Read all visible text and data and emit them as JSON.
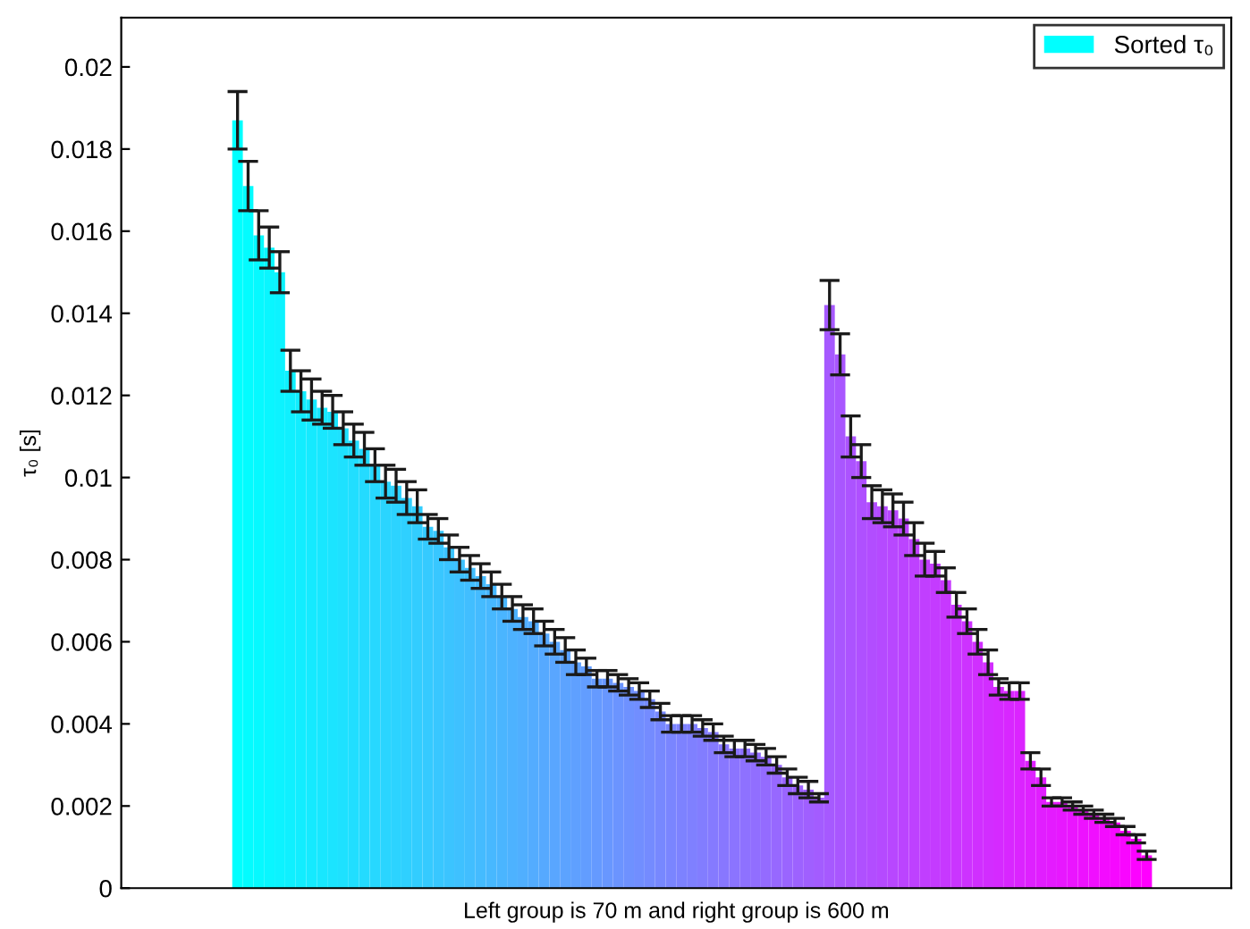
{
  "chart_data": {
    "type": "bar",
    "xlabel": "Left group is 70 m and right group is 600 m",
    "ylabel": "τ₀ [s]",
    "categories": [
      null,
      null,
      null,
      null,
      null,
      null,
      null,
      null,
      null,
      null,
      null,
      null,
      null,
      null,
      null,
      null,
      null,
      null,
      null,
      null,
      null,
      null,
      null,
      null,
      null,
      null,
      null,
      null,
      null,
      null,
      null,
      null,
      null,
      null,
      null,
      null,
      null,
      null,
      null,
      null,
      null,
      null,
      null,
      null,
      null,
      null,
      null,
      null,
      null,
      null,
      null,
      null,
      null,
      null,
      null,
      null,
      null,
      null,
      null,
      null,
      null,
      null,
      null,
      null,
      null,
      null,
      null,
      null,
      null,
      null,
      null,
      null,
      null,
      null,
      null,
      null,
      null,
      null,
      null,
      null,
      null,
      null,
      null,
      null,
      null,
      null,
      null
    ],
    "series": [
      {
        "name": "Sorted τ₀",
        "color": "#00ffff",
        "values": [
          0.0187,
          0.0171,
          0.0159,
          0.0156,
          0.015,
          0.0126,
          0.0121,
          0.0119,
          0.0117,
          0.0116,
          0.0112,
          0.0109,
          0.0107,
          0.0103,
          0.0099,
          0.0098,
          0.0095,
          0.0093,
          0.0088,
          0.0087,
          0.0083,
          0.008,
          0.0078,
          0.0076,
          0.0074,
          0.0071,
          0.0068,
          0.0066,
          0.0065,
          0.0062,
          0.006,
          0.0058,
          0.0055,
          0.0054,
          0.0051,
          0.0051,
          0.005,
          0.0049,
          0.0048,
          0.0046,
          0.0043,
          0.004,
          0.004,
          0.004,
          0.0039,
          0.0038,
          0.0035,
          0.0034,
          0.0034,
          0.0033,
          0.0032,
          0.003,
          0.0027,
          0.0025,
          0.0024,
          0.0022,
          0.0142,
          0.013,
          0.011,
          0.0104,
          0.0094,
          0.0093,
          0.0092,
          0.009,
          0.0085,
          0.008,
          0.0079,
          0.0075,
          0.0069,
          0.0065,
          0.006,
          0.0055,
          0.0049,
          0.0048,
          0.0048,
          0.0031,
          0.0027,
          0.0021,
          0.0021,
          0.002,
          0.0019,
          0.0018,
          0.0017,
          0.0016,
          0.0014,
          0.0012,
          0.0008
        ],
        "errors": [
          0.0007,
          0.0006,
          0.0006,
          0.0005,
          0.0005,
          0.0005,
          0.0005,
          0.0005,
          0.0004,
          0.0004,
          0.0004,
          0.0004,
          0.0004,
          0.0004,
          0.0004,
          0.0004,
          0.0004,
          0.0004,
          0.0003,
          0.0003,
          0.0003,
          0.0003,
          0.0003,
          0.0003,
          0.0003,
          0.0003,
          0.0003,
          0.0003,
          0.0003,
          0.0003,
          0.0003,
          0.0003,
          0.0003,
          0.0002,
          0.0002,
          0.0002,
          0.0002,
          0.0002,
          0.0002,
          0.0002,
          0.0002,
          0.0002,
          0.0002,
          0.0002,
          0.0002,
          0.0002,
          0.0002,
          0.0002,
          0.0002,
          0.0002,
          0.0002,
          0.0002,
          0.0002,
          0.0002,
          0.0002,
          0.0001,
          0.0006,
          0.0005,
          0.0005,
          0.0004,
          0.0004,
          0.0004,
          0.0004,
          0.0004,
          0.0004,
          0.0004,
          0.0003,
          0.0003,
          0.0003,
          0.0003,
          0.0003,
          0.0003,
          0.0002,
          0.0002,
          0.0002,
          0.0002,
          0.0002,
          0.0001,
          0.0001,
          0.0001,
          0.0001,
          0.0001,
          0.0001,
          0.0001,
          0.0001,
          0.0001,
          0.0001
        ],
        "colors": [
          "#00ffff",
          "#03fcff",
          "#06f9ff",
          "#09f6ff",
          "#0cf3ff",
          "#0ff0ff",
          "#12edff",
          "#15eaff",
          "#18e7ff",
          "#1be4ff",
          "#1ee1ff",
          "#21deff",
          "#24dbff",
          "#27d8ff",
          "#2ad5ff",
          "#2cd3ff",
          "#2fd0ff",
          "#32cdff",
          "#35caff",
          "#38c7ff",
          "#3bc4ff",
          "#3ec1ff",
          "#41beff",
          "#44bbff",
          "#47b8ff",
          "#4ab5ff",
          "#4db2ff",
          "#50afff",
          "#53acff",
          "#56a9ff",
          "#59a6ff",
          "#5ca3ff",
          "#5fa0ff",
          "#629dff",
          "#659aff",
          "#6897ff",
          "#6b94ff",
          "#6e91ff",
          "#718eff",
          "#748bff",
          "#7788ff",
          "#7a85ff",
          "#7d82ff",
          "#7f80ff",
          "#827dff",
          "#857aff",
          "#8877ff",
          "#8b74ff",
          "#8e71ff",
          "#916eff",
          "#946bff",
          "#9768ff",
          "#9a65ff",
          "#9d62ff",
          "#a05fff",
          "#a35cff",
          "#a659ff",
          "#a956ff",
          "#ac53ff",
          "#af50ff",
          "#b24dff",
          "#b54aff",
          "#b847ff",
          "#bb44ff",
          "#be41ff",
          "#c13eff",
          "#c43bff",
          "#c738ff",
          "#ca35ff",
          "#cd32ff",
          "#d02fff",
          "#d22dff",
          "#d52aff",
          "#d827ff",
          "#db24ff",
          "#de21ff",
          "#e11eff",
          "#e41bff",
          "#e718ff",
          "#ea15ff",
          "#ed12ff",
          "#f00fff",
          "#f30cff",
          "#f609ff",
          "#f906ff",
          "#fc03ff",
          "#ff00ff"
        ]
      }
    ],
    "ylim": [
      0,
      0.0212
    ],
    "yticks": [
      0,
      0.002,
      0.004,
      0.006,
      0.008,
      0.01,
      0.012,
      0.014,
      0.016,
      0.018,
      0.02
    ],
    "legend": "top right",
    "grid": false
  }
}
